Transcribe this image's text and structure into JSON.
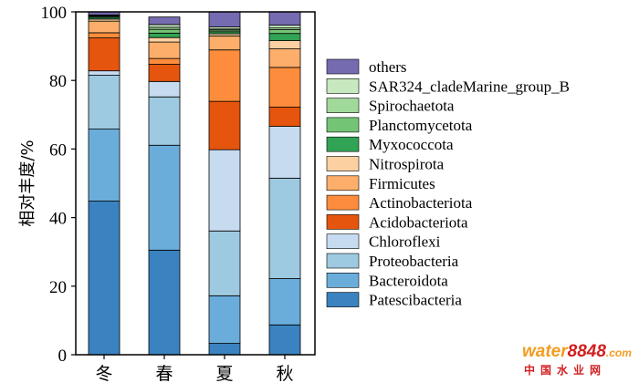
{
  "chart_data": {
    "type": "bar",
    "stacked": true,
    "categories": [
      "冬",
      "春",
      "夏",
      "秋"
    ],
    "ylabel": "相对丰度/%",
    "ylim": [
      0,
      100
    ],
    "yticks": [
      0,
      20,
      40,
      60,
      80,
      100
    ],
    "grid": false,
    "legend_position": "right",
    "series": [
      {
        "name": "Patescibacteria",
        "color": "#3a82c0",
        "values": [
          44.8,
          30.5,
          3.3,
          8.7
        ]
      },
      {
        "name": "Bacteroidota",
        "color": "#6aaddb",
        "values": [
          21.0,
          30.6,
          13.9,
          13.5
        ]
      },
      {
        "name": "Proteobacteria",
        "color": "#9ecae1",
        "values": [
          15.7,
          14.1,
          18.9,
          29.3
        ]
      },
      {
        "name": "Chloroflexi",
        "color": "#c6dbef",
        "values": [
          1.3,
          4.5,
          23.7,
          15.1
        ]
      },
      {
        "name": "Acidobacteriota",
        "color": "#e6550d",
        "values": [
          9.6,
          5.0,
          14.1,
          5.6
        ]
      },
      {
        "name": "Actinobacteriota",
        "color": "#fd8d3c",
        "values": [
          1.5,
          1.7,
          15.0,
          11.6
        ]
      },
      {
        "name": "Firmicutes",
        "color": "#fdae6b",
        "values": [
          3.4,
          4.8,
          4.1,
          5.4
        ]
      },
      {
        "name": "Nitrospirota",
        "color": "#fdd0a2",
        "values": [
          0.6,
          1.3,
          0.6,
          2.4
        ]
      },
      {
        "name": "Myxococcota",
        "color": "#31a354",
        "values": [
          0.5,
          1.3,
          0.6,
          2.1
        ]
      },
      {
        "name": "Planctomycetota",
        "color": "#74c476",
        "values": [
          0.3,
          1.1,
          0.5,
          1.1
        ]
      },
      {
        "name": "Spirochaetota",
        "color": "#a1d99b",
        "values": [
          0.2,
          0.6,
          0.3,
          0.5
        ]
      },
      {
        "name": "SAR324_cladeMarine_group_B",
        "color": "#c7e9c0",
        "values": [
          0.2,
          0.8,
          0.6,
          0.8
        ]
      },
      {
        "name": "others",
        "color": "#756bb1",
        "values": [
          0.9,
          2.2,
          4.4,
          3.9
        ]
      }
    ]
  },
  "watermark": {
    "brand_water": "water",
    "brand_num": "8848",
    "brand_dom": ".com",
    "subtitle": "中国水业网",
    "colors": {
      "water": "#f29c1f",
      "num": "#d21f1f",
      "dom": "#f29c1f",
      "sub": "#d21f1f"
    }
  }
}
